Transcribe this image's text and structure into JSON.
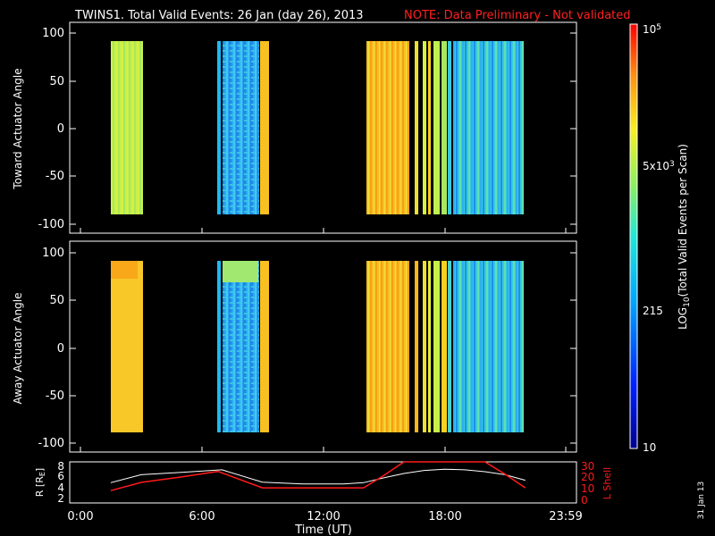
{
  "title": "TWINS1. Total Valid Events: 26 Jan (day  26), 2013",
  "note": "NOTE: Data Preliminary - Not validated",
  "date_stamp": "31 Jan 13",
  "colors": {
    "background": "#000000",
    "axes": "#ffffff",
    "note": "#ff2020",
    "r_line": "#ffffff",
    "l_line": "#ff1a1a"
  },
  "chart_data": [
    {
      "type": "heatmap",
      "ylabel": "Toward Actuator Angle",
      "ylim": [
        -110,
        110
      ],
      "yticks": [
        "100",
        "50",
        "0",
        "-50",
        "-100"
      ],
      "xlim": [
        0,
        24
      ],
      "data_time_ranges_hours": [
        [
          1.5,
          3.2
        ],
        [
          6.9,
          7.05
        ],
        [
          7.3,
          8.8
        ],
        [
          8.9,
          9.3
        ],
        [
          14.0,
          16.1
        ],
        [
          16.3,
          16.45
        ],
        [
          16.7,
          16.85
        ],
        [
          17.0,
          17.1
        ],
        [
          17.3,
          17.55
        ],
        [
          17.65,
          17.9
        ],
        [
          18.1,
          18.3
        ],
        [
          18.4,
          21.9
        ]
      ],
      "angle_range": [
        -88,
        90
      ]
    },
    {
      "type": "heatmap",
      "ylabel": "Away Actuator Angle",
      "ylim": [
        -110,
        110
      ],
      "yticks": [
        "100",
        "50",
        "0",
        "-50",
        "-100"
      ],
      "xlim": [
        0,
        24
      ],
      "data_time_ranges_hours": [
        [
          1.5,
          3.2
        ],
        [
          6.9,
          7.05
        ],
        [
          7.3,
          8.8
        ],
        [
          8.9,
          9.3
        ],
        [
          14.0,
          16.1
        ],
        [
          16.3,
          16.45
        ],
        [
          16.7,
          16.85
        ],
        [
          17.0,
          17.1
        ],
        [
          17.3,
          17.55
        ],
        [
          17.65,
          17.9
        ],
        [
          18.1,
          18.3
        ],
        [
          18.4,
          21.9
        ]
      ],
      "angle_range": [
        -88,
        90
      ]
    },
    {
      "type": "line",
      "xlabel": "Time (UT)",
      "xticks": [
        "0:00",
        "6:00",
        "12:00",
        "18:00",
        "23:59"
      ],
      "xlim": [
        0,
        24
      ],
      "left_axis": {
        "label": "R [RE]",
        "ylim": [
          1.5,
          8.2
        ],
        "ticks": [
          "8",
          "6",
          "4",
          "2"
        ]
      },
      "right_axis": {
        "label": "L Shell",
        "ylim": [
          0,
          30
        ],
        "ticks": [
          "30",
          "20",
          "10",
          "0"
        ]
      },
      "series": [
        {
          "name": "R",
          "axis": "left",
          "x": [
            1.5,
            3,
            5,
            7,
            9,
            11,
            13,
            14,
            15,
            16,
            17,
            18,
            19,
            20,
            21,
            22
          ],
          "values": [
            4.8,
            6.1,
            6.5,
            6.9,
            4.9,
            4.6,
            4.6,
            4.8,
            5.6,
            6.3,
            6.8,
            7.0,
            6.9,
            6.6,
            6.1,
            5.2
          ]
        },
        {
          "name": "L Shell",
          "axis": "right",
          "x": [
            1.5,
            3,
            5,
            6.8,
            9,
            11,
            13,
            14,
            15,
            16,
            16.5,
            19.5,
            20,
            21,
            22
          ],
          "values": [
            9,
            15,
            19,
            23,
            11,
            11,
            11,
            11,
            20,
            30,
            35,
            35,
            30,
            21,
            11
          ]
        }
      ]
    }
  ],
  "colorbar": {
    "label": "LOG10(Total Valid Events per Scan)",
    "range": [
      10,
      100000
    ],
    "tick_labels": [
      "10",
      "215",
      "5x10^3",
      "10^5"
    ]
  }
}
